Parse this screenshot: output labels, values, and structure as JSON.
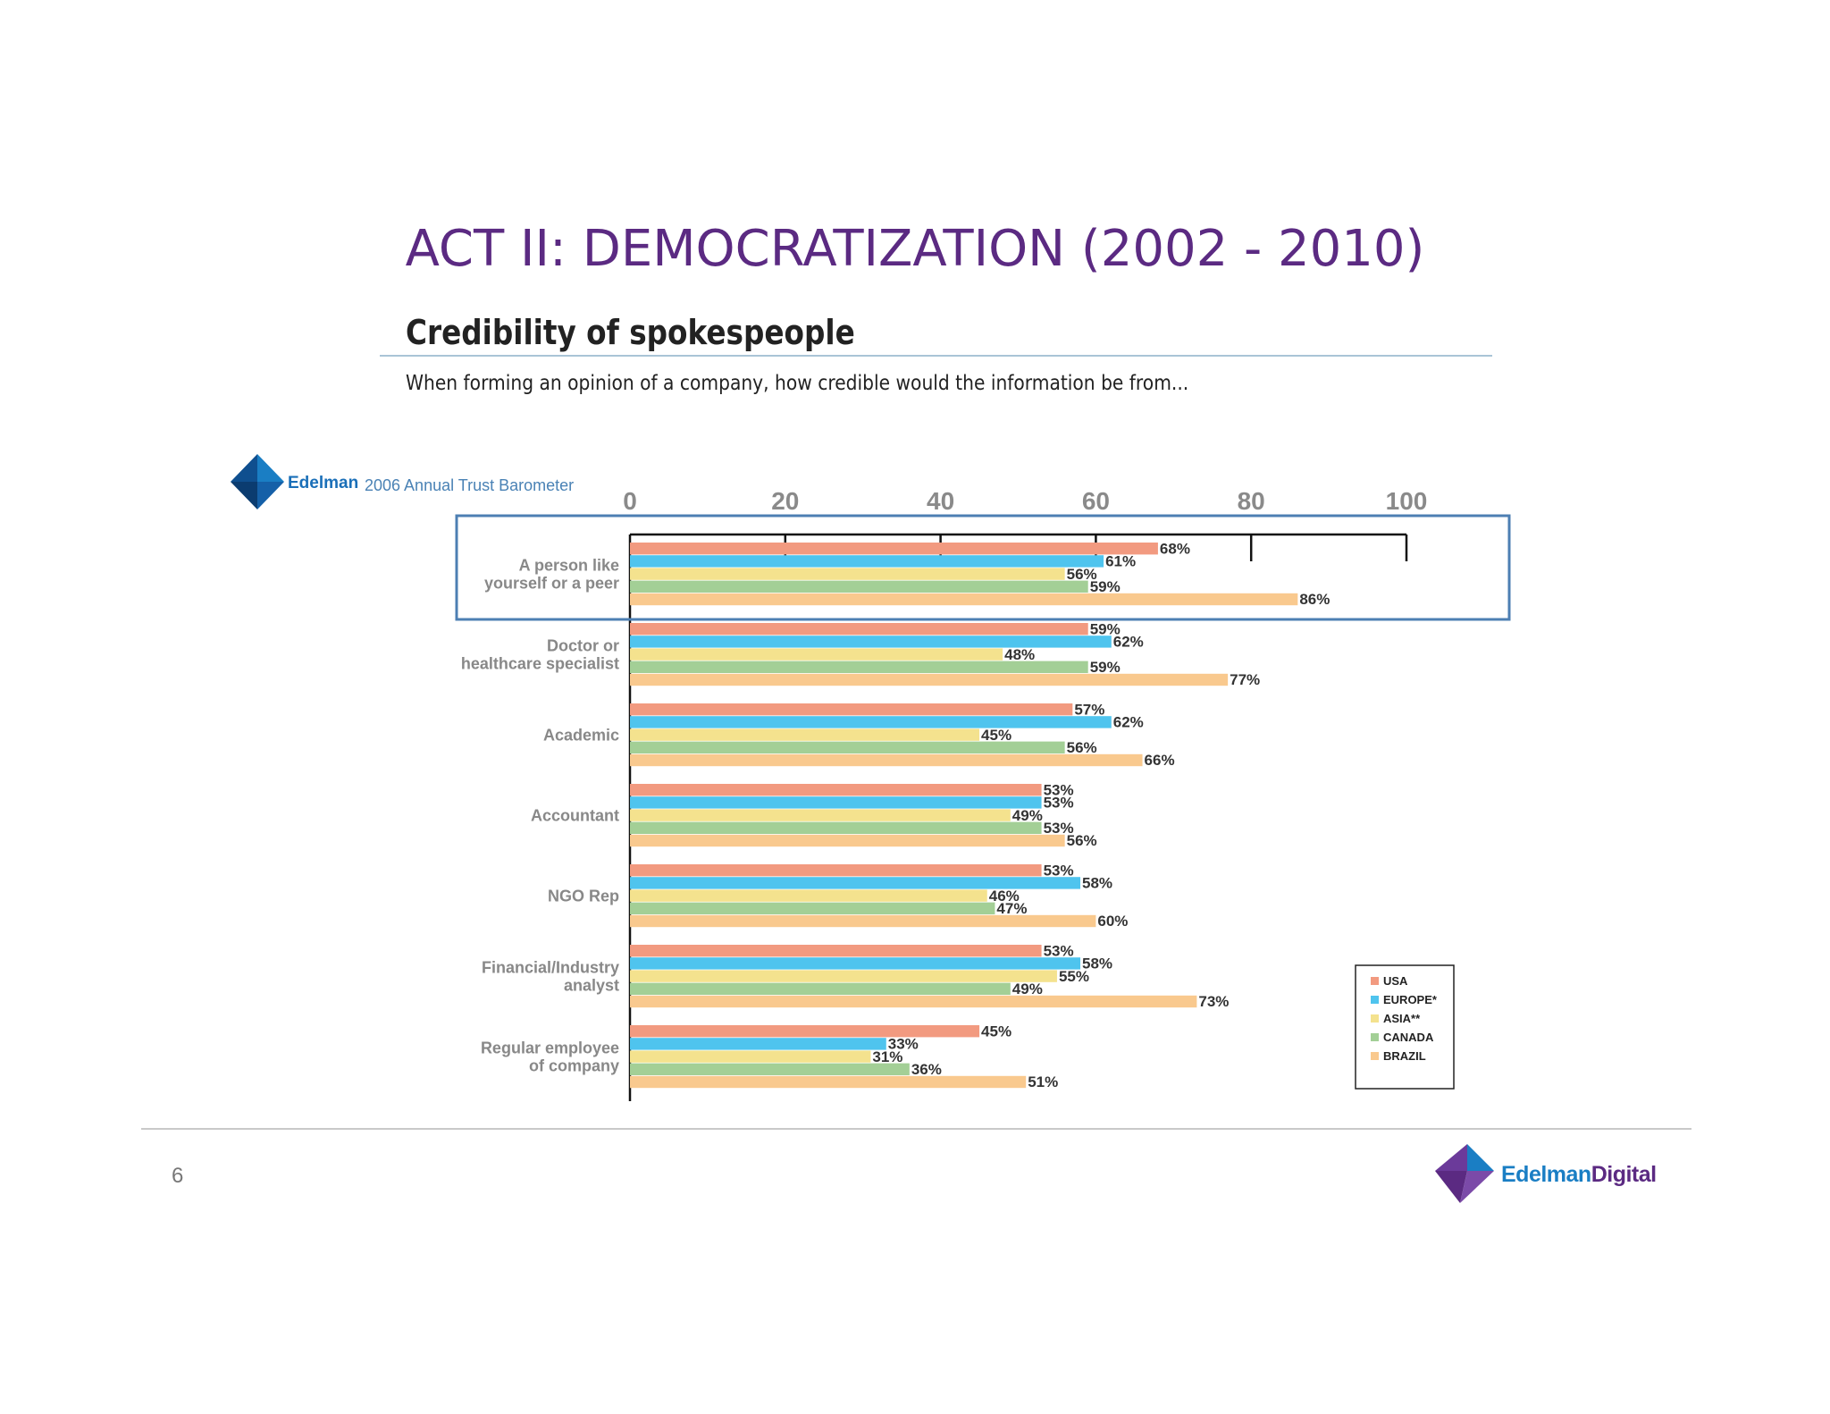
{
  "slide": {
    "title": "ACT II: DEMOCRATIZATION (2002 - 2010)",
    "page_number": "6",
    "brand": {
      "name_a": "Edelman",
      "name_b": "Digital"
    }
  },
  "barometer": {
    "brand": "Edelman",
    "text": "2006 Annual Trust Barometer"
  },
  "colors": {
    "title": "#5b2a82",
    "highlight_box": "#4d7fb3",
    "series": [
      "#f29a80",
      "#4fc4ee",
      "#f4e28e",
      "#a3cf96",
      "#f9c98e"
    ]
  },
  "chart_data": {
    "type": "bar",
    "orientation": "horizontal",
    "title": "Credibility of spokespeople",
    "subtitle": "When forming an opinion of a company, how credible would the information be from...",
    "xlim": [
      0,
      100
    ],
    "x_ticks": [
      "0",
      "20",
      "40",
      "60",
      "80",
      "100"
    ],
    "categories": [
      [
        "A person like",
        "yourself or a peer"
      ],
      [
        "Doctor or",
        "healthcare specialist"
      ],
      [
        "Academic"
      ],
      [
        "Accountant"
      ],
      [
        "NGO Rep"
      ],
      [
        "Financial/Industry",
        "analyst"
      ],
      [
        "Regular employee",
        "of company"
      ]
    ],
    "series": [
      {
        "name": "USA",
        "values": [
          68,
          59,
          57,
          53,
          53,
          53,
          45
        ],
        "labels": [
          "68%",
          "59%",
          "57%",
          "53%",
          "53%",
          "53%",
          "45%"
        ]
      },
      {
        "name": "EUROPE*",
        "values": [
          61,
          62,
          62,
          53,
          58,
          58,
          33
        ],
        "labels": [
          "61%",
          "62%",
          "62%",
          "53%",
          "58%",
          "58%",
          "33%"
        ]
      },
      {
        "name": "ASIA**",
        "values": [
          56,
          48,
          45,
          49,
          46,
          55,
          31
        ],
        "labels": [
          "56%",
          "48%",
          "45%",
          "49%",
          "46%",
          "55%",
          "31%"
        ]
      },
      {
        "name": "CANADA",
        "values": [
          59,
          59,
          56,
          53,
          47,
          49,
          36
        ],
        "labels": [
          "59%",
          "59%",
          "56%",
          "53%",
          "47%",
          "49%",
          "36%"
        ]
      },
      {
        "name": "BRAZIL",
        "values": [
          86,
          77,
          66,
          56,
          60,
          73,
          51
        ],
        "labels": [
          "86%",
          "77%",
          "66%",
          "56%",
          "60%",
          "73%",
          "51%"
        ]
      }
    ],
    "highlighted_category": "A person like yourself or a peer",
    "legend_position": "bottom-right"
  }
}
